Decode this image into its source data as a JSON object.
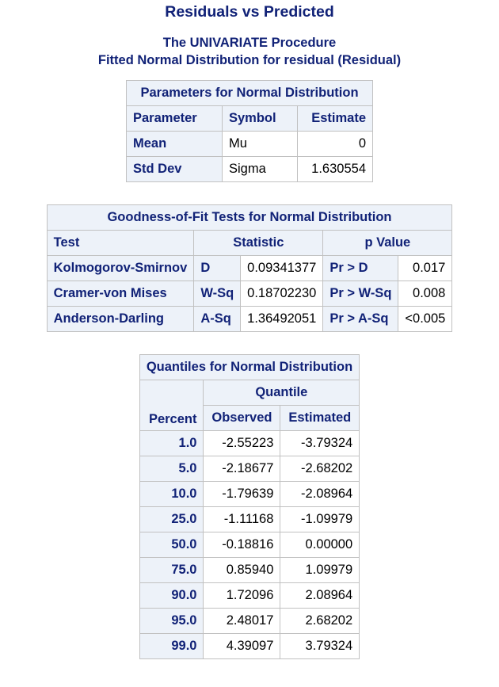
{
  "title": "Residuals vs Predicted",
  "procedure": "The UNIVARIATE Procedure",
  "fitted": "Fitted Normal Distribution for residual (Residual)",
  "params": {
    "caption": "Parameters for Normal Distribution",
    "headers": [
      "Parameter",
      "Symbol",
      "Estimate"
    ],
    "rows": [
      {
        "parameter": "Mean",
        "symbol": "Mu",
        "estimate": "0"
      },
      {
        "parameter": "Std Dev",
        "symbol": "Sigma",
        "estimate": "1.630554"
      }
    ]
  },
  "gof": {
    "caption": "Goodness-of-Fit Tests for Normal Distribution",
    "headers": {
      "test": "Test",
      "statistic": "Statistic",
      "pvalue": "p Value"
    },
    "rows": [
      {
        "test": "Kolmogorov-Smirnov",
        "stat_sym": "D",
        "stat_val": "0.09341377",
        "p_label": "Pr > D",
        "p_val": "0.017"
      },
      {
        "test": "Cramer-von Mises",
        "stat_sym": "W-Sq",
        "stat_val": "0.18702230",
        "p_label": "Pr > W-Sq",
        "p_val": "0.008"
      },
      {
        "test": "Anderson-Darling",
        "stat_sym": "A-Sq",
        "stat_val": "1.36492051",
        "p_label": "Pr > A-Sq",
        "p_val": "<0.005"
      }
    ]
  },
  "quantiles": {
    "caption": "Quantiles for Normal Distribution",
    "group_header": "Quantile",
    "headers": {
      "percent": "Percent",
      "observed": "Observed",
      "estimated": "Estimated"
    },
    "rows": [
      {
        "percent": "1.0",
        "observed": "-2.55223",
        "estimated": "-3.79324"
      },
      {
        "percent": "5.0",
        "observed": "-2.18677",
        "estimated": "-2.68202"
      },
      {
        "percent": "10.0",
        "observed": "-1.79639",
        "estimated": "-2.08964"
      },
      {
        "percent": "25.0",
        "observed": "-1.11168",
        "estimated": "-1.09979"
      },
      {
        "percent": "50.0",
        "observed": "-0.18816",
        "estimated": "0.00000"
      },
      {
        "percent": "75.0",
        "observed": "0.85940",
        "estimated": "1.09979"
      },
      {
        "percent": "90.0",
        "observed": "1.72096",
        "estimated": "2.08964"
      },
      {
        "percent": "95.0",
        "observed": "2.48017",
        "estimated": "2.68202"
      },
      {
        "percent": "99.0",
        "observed": "4.39097",
        "estimated": "3.79324"
      }
    ]
  }
}
